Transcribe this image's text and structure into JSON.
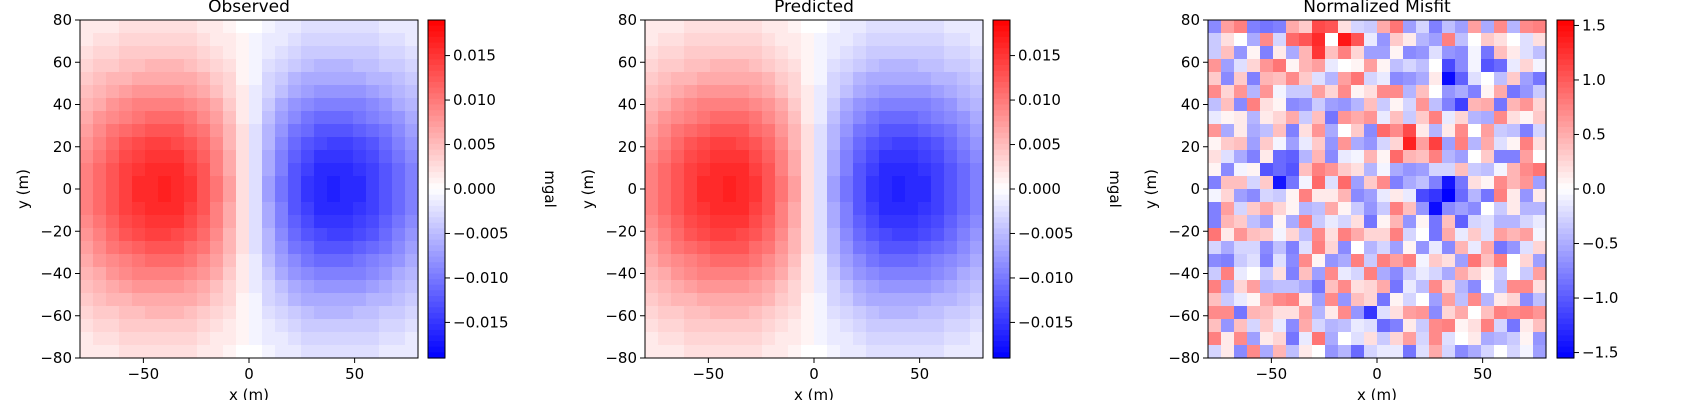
{
  "chart_data": [
    {
      "type": "heatmap",
      "title": "Observed",
      "xlabel": "x (m)",
      "ylabel": "y (m)",
      "xlim": [
        -80,
        80
      ],
      "ylim": [
        -80,
        80
      ],
      "xticks": [
        "−50",
        "0",
        "50"
      ],
      "xtick_values": [
        -50,
        0,
        50
      ],
      "yticks": [
        "80",
        "60",
        "40",
        "20",
        "0",
        "−20",
        "−40",
        "−60",
        "−80"
      ],
      "ytick_values": [
        80,
        60,
        40,
        20,
        0,
        -20,
        -40,
        -60,
        -80
      ],
      "colorbar": {
        "label": "mgal",
        "range": [
          -0.019,
          0.019
        ],
        "ticks": [
          "0.015",
          "0.010",
          "0.005",
          "0.000",
          "−0.005",
          "−0.010",
          "−0.015"
        ],
        "tick_values": [
          0.015,
          0.01,
          0.005,
          0.0,
          -0.005,
          -0.01,
          -0.015
        ],
        "colormap": "bwr"
      },
      "field": {
        "kind": "dipole",
        "positive_center": [
          -32,
          0
        ],
        "negative_center": [
          32,
          0
        ],
        "peak_value": 0.019,
        "noise": 0.0
      },
      "grid": false
    },
    {
      "type": "heatmap",
      "title": "Predicted",
      "xlabel": "x (m)",
      "ylabel": "y (m)",
      "xlim": [
        -80,
        80
      ],
      "ylim": [
        -80,
        80
      ],
      "xticks": [
        "−50",
        "0",
        "50"
      ],
      "xtick_values": [
        -50,
        0,
        50
      ],
      "yticks": [
        "80",
        "60",
        "40",
        "20",
        "0",
        "−20",
        "−40",
        "−60",
        "−80"
      ],
      "ytick_values": [
        80,
        60,
        40,
        20,
        0,
        -20,
        -40,
        -60,
        -80
      ],
      "colorbar": {
        "label": "mgal",
        "range": [
          -0.019,
          0.019
        ],
        "ticks": [
          "0.015",
          "0.010",
          "0.005",
          "0.000",
          "−0.005",
          "−0.010",
          "−0.015"
        ],
        "tick_values": [
          0.015,
          0.01,
          0.005,
          0.0,
          -0.005,
          -0.01,
          -0.015
        ],
        "colormap": "bwr"
      },
      "field": {
        "kind": "dipole",
        "positive_center": [
          -32,
          0
        ],
        "negative_center": [
          32,
          0
        ],
        "peak_value": 0.019,
        "noise": 0.0
      },
      "grid": false
    },
    {
      "type": "heatmap",
      "title": "Normalized Misfit",
      "xlabel": "x (m)",
      "ylabel": "y (m)",
      "xlim": [
        -80,
        80
      ],
      "ylim": [
        -80,
        80
      ],
      "xticks": [
        "−50",
        "0",
        "50"
      ],
      "xtick_values": [
        -50,
        0,
        50
      ],
      "yticks": [
        "80",
        "60",
        "40",
        "20",
        "0",
        "−20",
        "−40",
        "−60",
        "−80"
      ],
      "ytick_values": [
        80,
        60,
        40,
        20,
        0,
        -20,
        -40,
        -60,
        -80
      ],
      "colorbar": {
        "label": "",
        "range": [
          -1.55,
          1.55
        ],
        "ticks": [
          "1.5",
          "1.0",
          "0.5",
          "0.0",
          "−0.5",
          "−1.0",
          "−1.5"
        ],
        "tick_values": [
          1.5,
          1.0,
          0.5,
          0.0,
          -0.5,
          -1.0,
          -1.5
        ],
        "colormap": "bwr"
      },
      "field": {
        "kind": "noise",
        "peak_value": 1.55,
        "noise": 1.0
      },
      "grid": false
    }
  ]
}
